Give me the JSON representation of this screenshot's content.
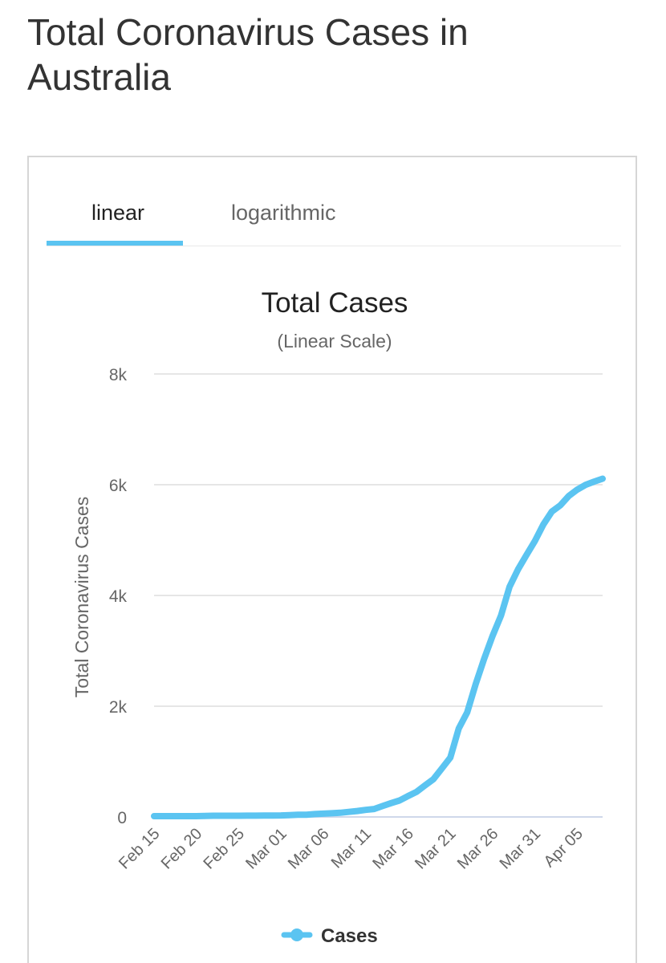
{
  "page": {
    "title": "Total Coronavirus Cases in Australia"
  },
  "tabs": [
    {
      "label": "linear",
      "active": true
    },
    {
      "label": "logarithmic",
      "active": false
    }
  ],
  "colors": {
    "accent": "#5bc4f1",
    "grid": "#e6e6e6",
    "title_text": "#333333"
  },
  "chart_data": {
    "type": "line",
    "title": "Total Cases",
    "subtitle": "(Linear Scale)",
    "xlabel": "",
    "ylabel": "Total Coronavirus Cases",
    "ylim": [
      0,
      8000
    ],
    "y_ticks": [
      0,
      2000,
      4000,
      6000,
      8000
    ],
    "y_tick_labels": [
      "0",
      "2k",
      "4k",
      "6k",
      "8k"
    ],
    "x_tick_labels": [
      "Feb 15",
      "Feb 20",
      "Feb 25",
      "Mar 01",
      "Mar 06",
      "Mar 11",
      "Mar 16",
      "Mar 21",
      "Mar 26",
      "Mar 31",
      "Apr 05"
    ],
    "x_start": "Feb 15",
    "grid": true,
    "legend": {
      "position": "bottom-center",
      "entries": [
        "Cases"
      ]
    },
    "series": [
      {
        "name": "Cases",
        "color": "#5bc4f1",
        "x": [
          "Feb 15",
          "Feb 16",
          "Feb 17",
          "Feb 18",
          "Feb 19",
          "Feb 20",
          "Feb 21",
          "Feb 22",
          "Feb 23",
          "Feb 24",
          "Feb 25",
          "Feb 26",
          "Feb 27",
          "Feb 28",
          "Feb 29",
          "Mar 01",
          "Mar 02",
          "Mar 03",
          "Mar 04",
          "Mar 05",
          "Mar 06",
          "Mar 07",
          "Mar 08",
          "Mar 09",
          "Mar 10",
          "Mar 11",
          "Mar 12",
          "Mar 13",
          "Mar 14",
          "Mar 15",
          "Mar 16",
          "Mar 17",
          "Mar 18",
          "Mar 19",
          "Mar 20",
          "Mar 21",
          "Mar 22",
          "Mar 23",
          "Mar 24",
          "Mar 25",
          "Mar 26",
          "Mar 27",
          "Mar 28",
          "Mar 29",
          "Mar 30",
          "Mar 31",
          "Apr 01",
          "Apr 02",
          "Apr 03",
          "Apr 04",
          "Apr 05",
          "Apr 06",
          "Apr 07",
          "Apr 08"
        ],
        "values": [
          15,
          15,
          15,
          15,
          15,
          15,
          17,
          22,
          22,
          22,
          22,
          23,
          23,
          25,
          26,
          27,
          33,
          39,
          41,
          52,
          60,
          66,
          76,
          91,
          107,
          128,
          144,
          197,
          250,
          297,
          377,
          452,
          568,
          681,
          874,
          1071,
          1597,
          1887,
          2398,
          2854,
          3271,
          3637,
          4156,
          4468,
          4731,
          4983,
          5282,
          5514,
          5627,
          5795,
          5911,
          5999,
          6057,
          6108
        ]
      }
    ]
  }
}
